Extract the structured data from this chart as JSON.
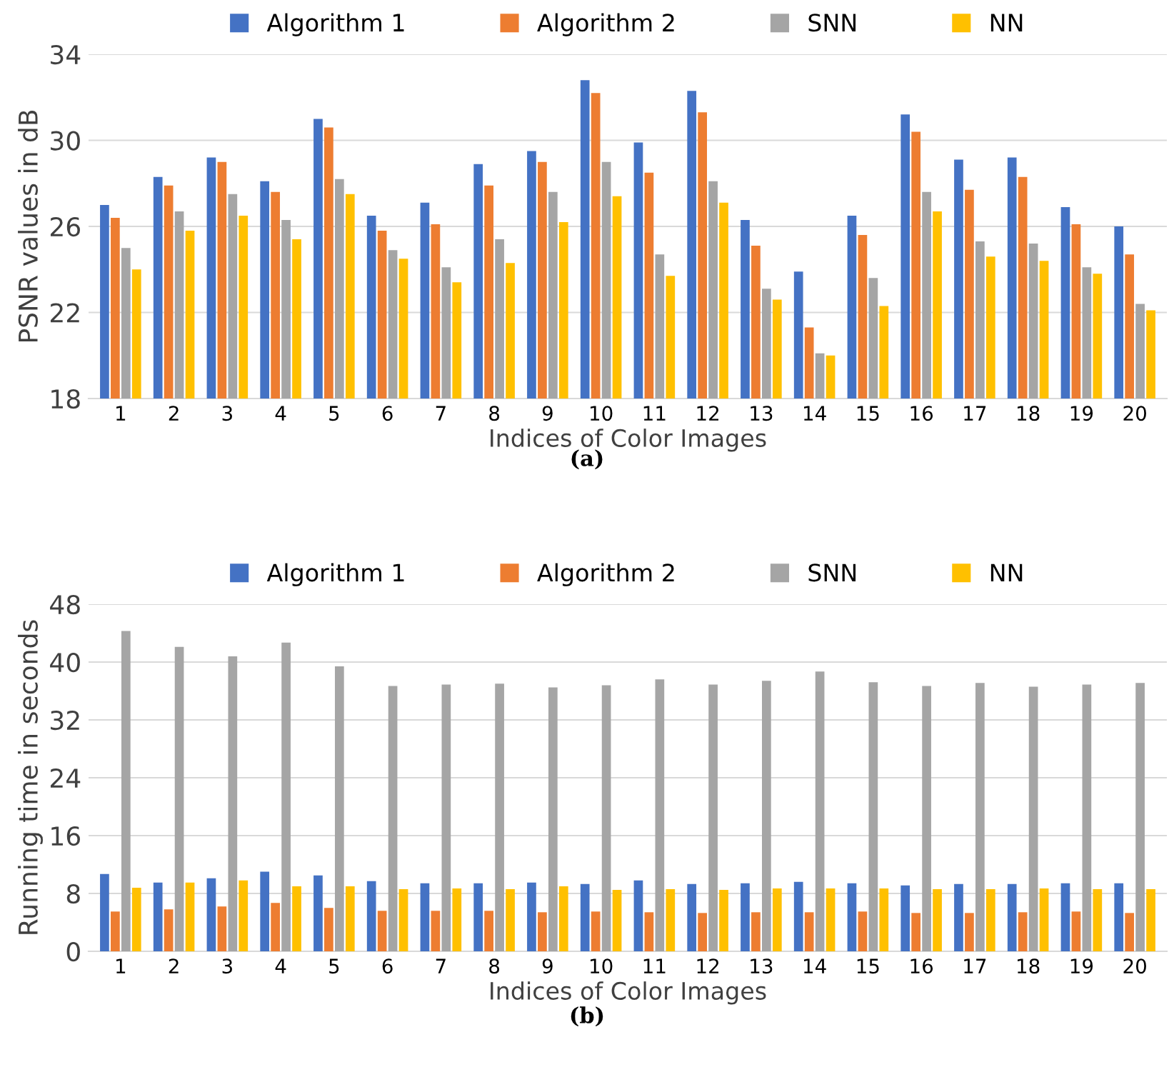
{
  "chart_data": [
    {
      "type": "bar",
      "xlabel": "Indices of Color Images",
      "ylabel": "PSNR values in dB",
      "annotations": [
        "(a)"
      ],
      "categories": [
        "1",
        "2",
        "3",
        "4",
        "5",
        "6",
        "7",
        "8",
        "9",
        "10",
        "11",
        "12",
        "13",
        "14",
        "15",
        "16",
        "17",
        "18",
        "19",
        "20"
      ],
      "series": [
        {
          "name": "Algorithm 1",
          "color": "#4472c4",
          "values": [
            27.0,
            28.3,
            29.2,
            28.1,
            31.0,
            26.5,
            27.1,
            28.9,
            29.5,
            32.8,
            29.9,
            32.3,
            26.3,
            23.9,
            26.5,
            31.2,
            29.1,
            29.2,
            26.9,
            26.0
          ]
        },
        {
          "name": "Algorithm 2",
          "color": "#ed7d31",
          "values": [
            26.4,
            27.9,
            29.0,
            27.6,
            30.6,
            25.8,
            26.1,
            27.9,
            29.0,
            32.2,
            28.5,
            31.3,
            25.1,
            21.3,
            25.6,
            30.4,
            27.7,
            28.3,
            26.1,
            24.7
          ]
        },
        {
          "name": "SNN",
          "color": "#a5a5a5",
          "values": [
            25.0,
            26.7,
            27.5,
            26.3,
            28.2,
            24.9,
            24.1,
            25.4,
            27.6,
            29.0,
            24.7,
            28.1,
            23.1,
            20.1,
            23.6,
            27.6,
            25.3,
            25.2,
            24.1,
            22.4
          ]
        },
        {
          "name": "NN",
          "color": "#ffc000",
          "values": [
            24.0,
            25.8,
            26.5,
            25.4,
            27.5,
            24.5,
            23.4,
            24.3,
            26.2,
            27.4,
            23.7,
            27.1,
            22.6,
            20.0,
            22.3,
            26.7,
            24.6,
            24.4,
            23.8,
            22.1
          ]
        }
      ],
      "ylim": [
        18,
        34
      ],
      "yticks": [
        18,
        22,
        26,
        30,
        34
      ],
      "grid": "y",
      "legend": "top"
    },
    {
      "type": "bar",
      "xlabel": "Indices of Color Images",
      "ylabel": "Running time in seconds",
      "annotations": [
        "(b)"
      ],
      "categories": [
        "1",
        "2",
        "3",
        "4",
        "5",
        "6",
        "7",
        "8",
        "9",
        "10",
        "11",
        "12",
        "13",
        "14",
        "15",
        "16",
        "17",
        "18",
        "19",
        "20"
      ],
      "series": [
        {
          "name": "Algorithm 1",
          "color": "#4472c4",
          "values": [
            10.7,
            9.5,
            10.1,
            11.0,
            10.5,
            9.7,
            9.4,
            9.4,
            9.5,
            9.3,
            9.8,
            9.3,
            9.4,
            9.6,
            9.4,
            9.1,
            9.3,
            9.3,
            9.4,
            9.4
          ]
        },
        {
          "name": "Algorithm 2",
          "color": "#ed7d31",
          "values": [
            5.5,
            5.8,
            6.2,
            6.7,
            6.0,
            5.6,
            5.6,
            5.6,
            5.4,
            5.5,
            5.4,
            5.3,
            5.4,
            5.4,
            5.5,
            5.3,
            5.3,
            5.4,
            5.5,
            5.3
          ]
        },
        {
          "name": "SNN",
          "color": "#a5a5a5",
          "values": [
            44.3,
            42.1,
            40.8,
            42.7,
            39.4,
            36.7,
            36.9,
            37.0,
            36.5,
            36.8,
            37.6,
            36.9,
            37.4,
            38.7,
            37.2,
            36.7,
            37.1,
            36.6,
            36.9,
            37.1
          ]
        },
        {
          "name": "NN",
          "color": "#ffc000",
          "values": [
            8.8,
            9.5,
            9.8,
            9.0,
            9.0,
            8.6,
            8.7,
            8.6,
            9.0,
            8.5,
            8.6,
            8.5,
            8.7,
            8.7,
            8.7,
            8.6,
            8.6,
            8.7,
            8.6,
            8.6
          ]
        }
      ],
      "ylim": [
        0,
        48
      ],
      "yticks": [
        0,
        8,
        16,
        24,
        32,
        40,
        48
      ],
      "grid": "y",
      "legend": "top"
    }
  ]
}
